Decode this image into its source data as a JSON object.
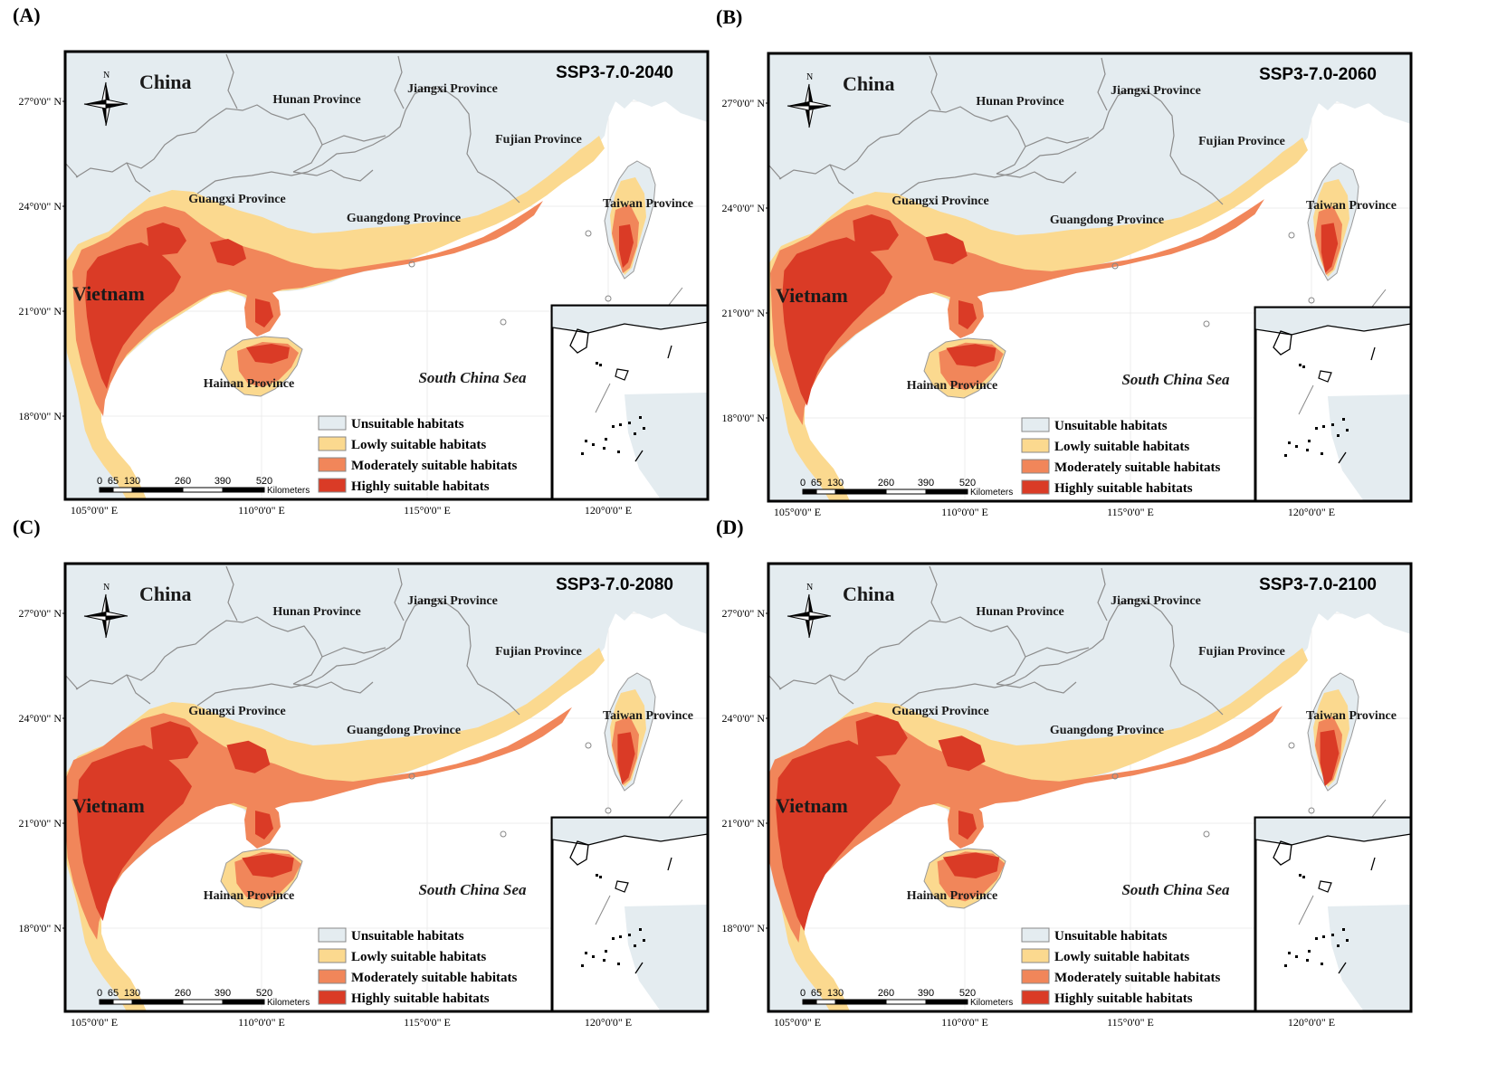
{
  "colors": {
    "unsuitable": "#e4ecf0",
    "low": "#fbd98f",
    "moderate": "#f1865a",
    "high": "#da3b26",
    "sea": "#ffffff",
    "border": "#8c8c8c",
    "frame": "#000000"
  },
  "labels": {
    "china": "China",
    "vietnam": "Vietnam",
    "hunan": "Hunan Province",
    "jiangxi": "Jiangxi Province",
    "fujian": "Fujian Province",
    "guangxi": "Guangxi Province",
    "guangdong": "Guangdong Province",
    "taiwan": "Taiwan Province",
    "hainan": "Hainan Province",
    "scs": "South China Sea",
    "north": "N"
  },
  "legend": [
    {
      "label": "Unsuitable habitats",
      "color_key": "unsuitable"
    },
    {
      "label": "Lowly suitable habitats",
      "color_key": "low"
    },
    {
      "label": "Moderately suitable habitats",
      "color_key": "moderate"
    },
    {
      "label": "Highly suitable habitats",
      "color_key": "high"
    }
  ],
  "scale_bar": {
    "ticks": [
      "0",
      "65",
      "130",
      "260",
      "390",
      "520"
    ],
    "unit": "Kilometers"
  },
  "lat_labels": [
    "27°0'0\" N",
    "24°0'0\" N",
    "21°0'0\" N",
    "18°0'0\" N"
  ],
  "lon_labels": [
    "105°0'0\" E",
    "110°0'0\" E",
    "115°0'0\" E",
    "120°0'0\" E"
  ],
  "panels": [
    {
      "letter": "(A)",
      "scenario": "SSP3-7.0-2040",
      "high_level": 1.0,
      "moderate_level": 1.0
    },
    {
      "letter": "(B)",
      "scenario": "SSP3-7.0-2060",
      "high_level": 1.15,
      "moderate_level": 1.05
    },
    {
      "letter": "(C)",
      "scenario": "SSP3-7.0-2080",
      "high_level": 1.2,
      "moderate_level": 1.08
    },
    {
      "letter": "(D)",
      "scenario": "SSP3-7.0-2100",
      "high_level": 1.3,
      "moderate_level": 1.1
    }
  ]
}
